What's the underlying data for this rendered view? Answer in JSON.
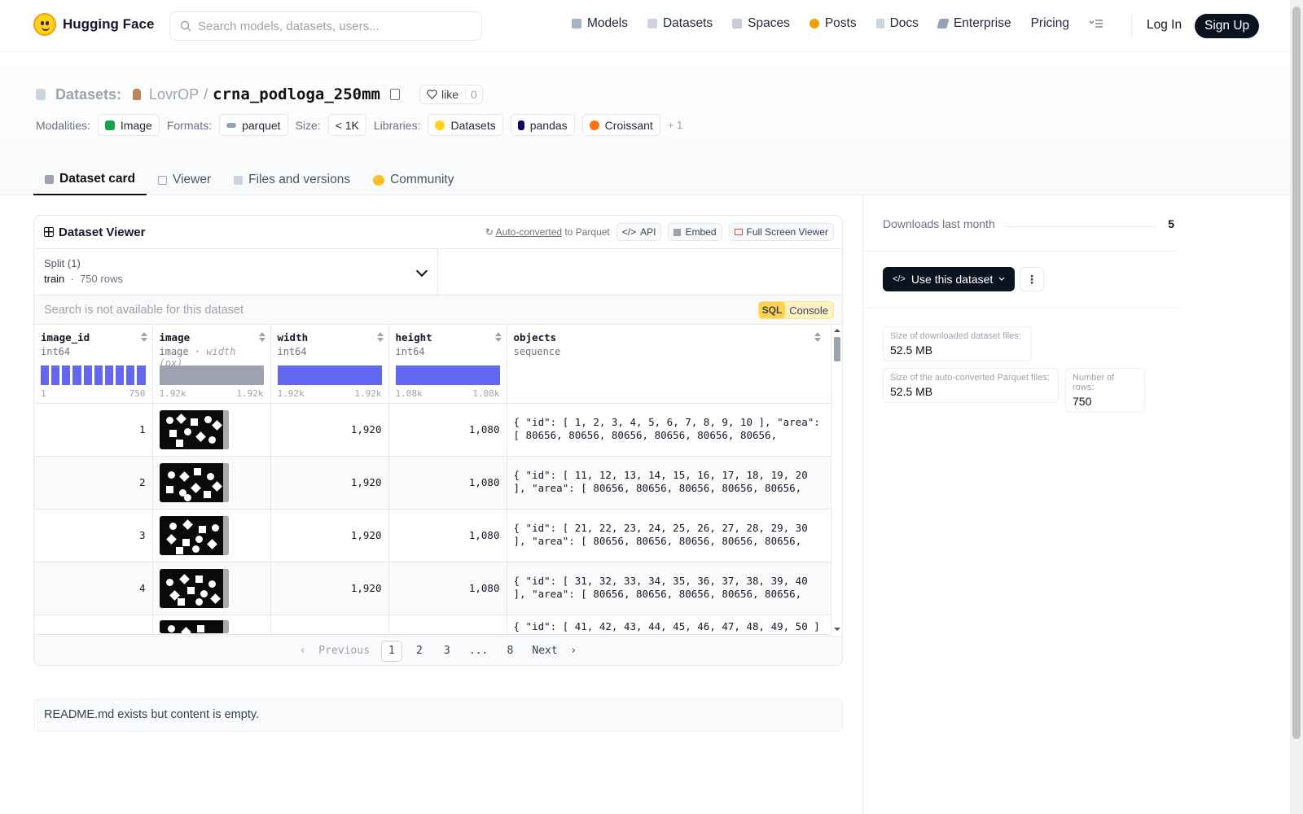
{
  "nav": {
    "brand": "Hugging Face",
    "search_placeholder": "Search models, datasets, users...",
    "links": [
      "Models",
      "Datasets",
      "Spaces",
      "Posts",
      "Docs",
      "Enterprise",
      "Pricing"
    ],
    "login": "Log In",
    "signup": "Sign Up"
  },
  "header": {
    "section": "Datasets:",
    "owner": "LovrOP",
    "slash": "/",
    "repo": "crna_podloga_250mm",
    "like_label": "like",
    "like_count": "0",
    "modalities_label": "Modalities:",
    "modality": "Image",
    "formats_label": "Formats:",
    "format": "parquet",
    "size_label": "Size:",
    "size": "< 1K",
    "libraries_label": "Libraries:",
    "libraries": [
      "Datasets",
      "pandas",
      "Croissant"
    ],
    "libraries_more": "+ 1"
  },
  "tabs": [
    "Dataset card",
    "Viewer",
    "Files and versions",
    "Community"
  ],
  "viewer": {
    "title": "Dataset Viewer",
    "auto_converted": "Auto-converted",
    "to_parquet": " to Parquet",
    "api": "API",
    "embed": "Embed",
    "fullscreen": "Full Screen Viewer",
    "split_label": "Split (1)",
    "split_name": "train",
    "split_rows": "750 rows",
    "search_na": "Search is not available for this dataset",
    "sql": "SQL",
    "console": "Console",
    "columns": [
      {
        "name": "image_id",
        "type": "int64",
        "range_min": "1",
        "range_max": "750"
      },
      {
        "name": "image",
        "type": "image",
        "type_extra": "width (px)",
        "range_min": "1.92k",
        "range_max": "1.92k"
      },
      {
        "name": "width",
        "type": "int64",
        "range_min": "1.92k",
        "range_max": "1.92k"
      },
      {
        "name": "height",
        "type": "int64",
        "range_min": "1.08k",
        "range_max": "1.08k"
      },
      {
        "name": "objects",
        "type": "sequence"
      }
    ],
    "rows": [
      {
        "image_id": "1",
        "width": "1,920",
        "height": "1,080",
        "objects": "{ \"id\": [ 1, 2, 3, 4, 5, 6, 7, 8, 9, 10 ], \"area\": [ 80656, 80656, 80656, 80656, 80656, 80656, 80656,…"
      },
      {
        "image_id": "2",
        "width": "1,920",
        "height": "1,080",
        "objects": "{ \"id\": [ 11, 12, 13, 14, 15, 16, 17, 18, 19, 20 ], \"area\": [ 80656, 80656, 80656, 80656, 80656, 80656,…"
      },
      {
        "image_id": "3",
        "width": "1,920",
        "height": "1,080",
        "objects": "{ \"id\": [ 21, 22, 23, 24, 25, 26, 27, 28, 29, 30 ], \"area\": [ 80656, 80656, 80656, 80656, 80656, 80656,…"
      },
      {
        "image_id": "4",
        "width": "1,920",
        "height": "1,080",
        "objects": "{ \"id\": [ 31, 32, 33, 34, 35, 36, 37, 38, 39, 40 ], \"area\": [ 80656, 80656, 80656, 80656, 80656, 80656,…"
      },
      {
        "image_id": "",
        "width": "",
        "height": "",
        "objects": "{ \"id\": [ 41, 42, 43, 44, 45, 46, 47, 48, 49, 50 ]"
      }
    ],
    "pager": {
      "prev": "Previous",
      "pages": [
        "1",
        "2",
        "3",
        "...",
        "8"
      ],
      "next": "Next"
    }
  },
  "readme": "README.md exists but content is empty.",
  "sidebar": {
    "downloads_label": "Downloads last month",
    "downloads_value": "5",
    "use_dataset": "Use this dataset",
    "stat1_label": "Size of downloaded dataset files:",
    "stat1_value": "52.5 MB",
    "stat2_label": "Size of the auto-converted Parquet files:",
    "stat2_value": "52.5 MB",
    "stat3_label": "Number of rows:",
    "stat3_value": "750"
  },
  "colors": {
    "accent": "#6366f1",
    "dark": "#0b1220",
    "brand": "#ffd21e"
  }
}
